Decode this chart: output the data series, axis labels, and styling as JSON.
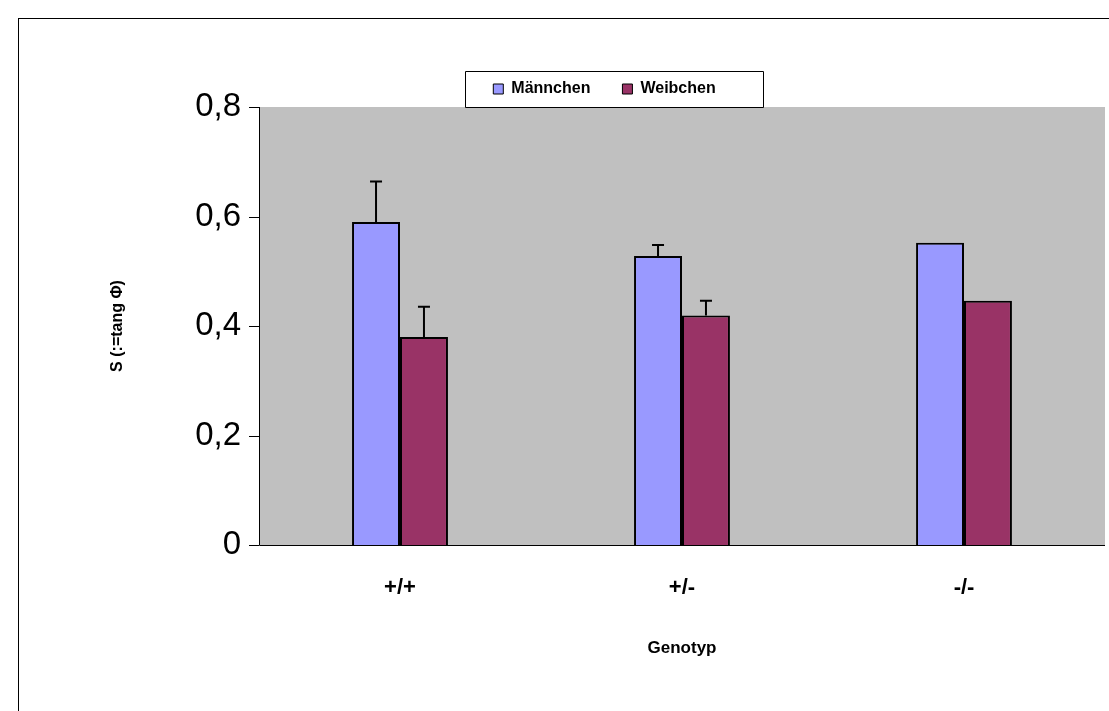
{
  "chart_data": {
    "type": "bar",
    "xlabel": "Genotyp",
    "ylabel": "S (:=tang Φ)",
    "categories": [
      "+/+",
      "+/-",
      "-/-"
    ],
    "series": [
      {
        "name": "Männchen",
        "color": "#9999ff",
        "values": [
          0.59,
          0.528,
          0.552
        ],
        "errors": [
          [
            0.59,
            0.664
          ],
          [
            0.528,
            0.548
          ],
          null
        ]
      },
      {
        "name": "Weibchen",
        "color": "#993366",
        "values": [
          0.38,
          0.419,
          0.446
        ],
        "errors": [
          [
            0.38,
            0.435
          ],
          [
            0.419,
            0.446
          ],
          null
        ]
      }
    ],
    "ylim": [
      0,
      0.8
    ],
    "yticks": [
      {
        "value": 0,
        "label": "0"
      },
      {
        "value": 0.2,
        "label": "0,2"
      },
      {
        "value": 0.4,
        "label": "0,4"
      },
      {
        "value": 0.6,
        "label": "0,6"
      },
      {
        "value": 0.8,
        "label": "0,8"
      }
    ],
    "grid": false,
    "legend": "top"
  }
}
